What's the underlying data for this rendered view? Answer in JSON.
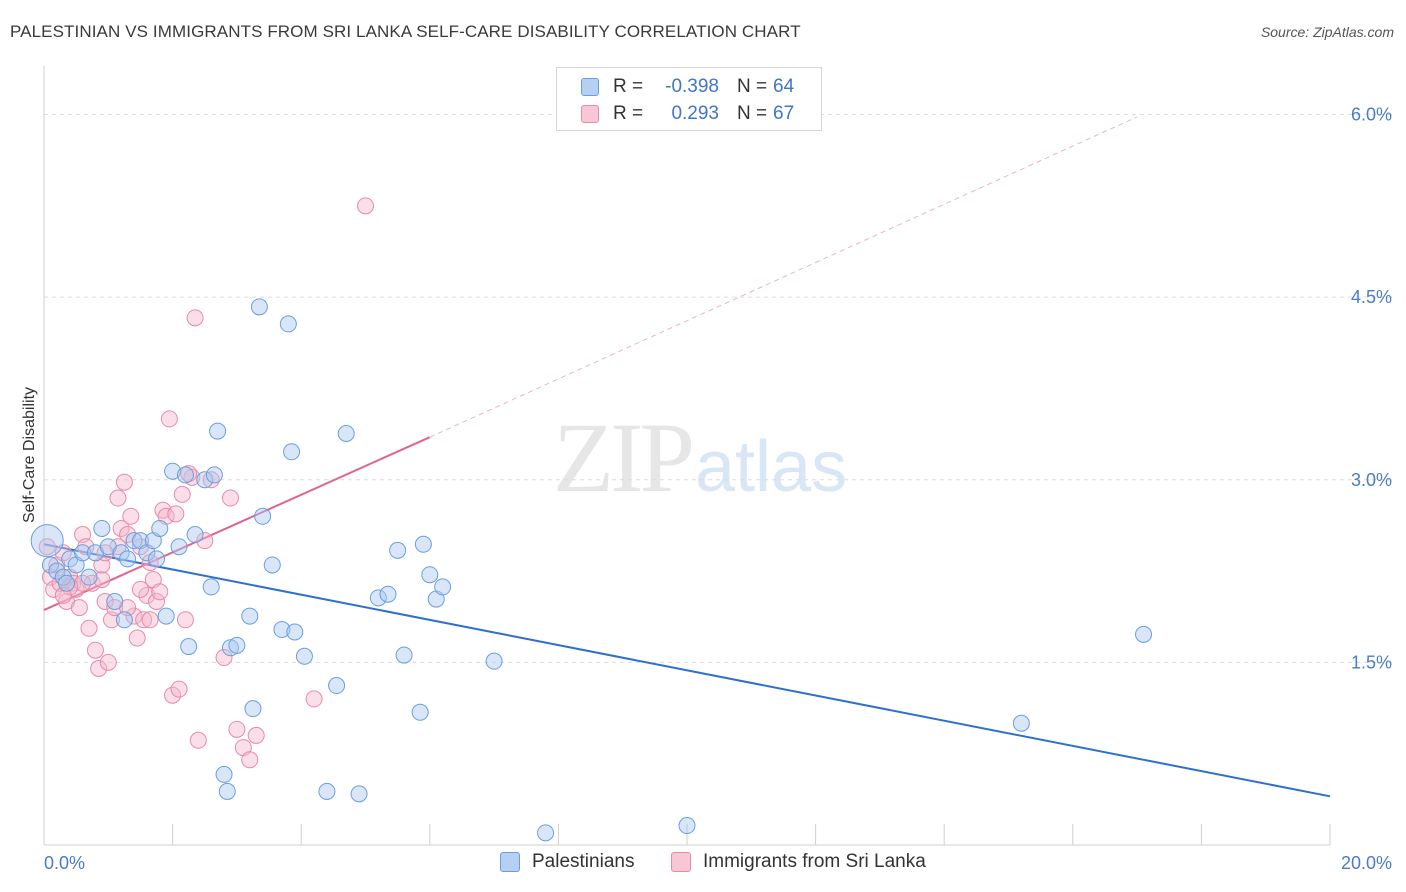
{
  "title": "PALESTINIAN VS IMMIGRANTS FROM SRI LANKA SELF-CARE DISABILITY CORRELATION CHART",
  "source": "Source: ZipAtlas.com",
  "watermark": {
    "zip": "ZIP",
    "atlas": "atlas"
  },
  "legend": {
    "rows": [
      {
        "r_label": "R =",
        "r_value": "-0.398",
        "n_label": "N =",
        "n_value": "64"
      },
      {
        "r_label": "R =",
        "r_value": "0.293",
        "n_label": "N =",
        "n_value": "67"
      }
    ]
  },
  "colors": {
    "blue_fill": "#a9c8f0",
    "blue_stroke": "#6a9ee0",
    "blue_line": "#2f6fcf",
    "pink_fill": "#f5b9cb",
    "pink_stroke": "#e88aa8",
    "pink_line": "#e0648e",
    "grid": "#dcdcdc",
    "tick_label": "#4a7cc9"
  },
  "chart_data": {
    "type": "scatter",
    "title": "PALESTINIAN VS IMMIGRANTS FROM SRI LANKA SELF-CARE DISABILITY CORRELATION CHART",
    "xlabel": "",
    "ylabel": "Self-Care Disability",
    "xlim": [
      0,
      20
    ],
    "ylim": [
      0,
      6.3
    ],
    "x_tick_labels": [
      "0.0%",
      "20.0%"
    ],
    "y_ticks": [
      1.5,
      3.0,
      4.5,
      6.0
    ],
    "y_tick_labels": [
      "1.5%",
      "3.0%",
      "4.5%",
      "6.0%"
    ],
    "grid": true,
    "legend_position": "top-center",
    "series": [
      {
        "name": "Palestinians",
        "color": "blue",
        "points": [
          [
            0.05,
            2.5
          ],
          [
            0.1,
            2.3
          ],
          [
            0.2,
            2.25
          ],
          [
            0.3,
            2.2
          ],
          [
            0.35,
            2.15
          ],
          [
            0.4,
            2.35
          ],
          [
            0.5,
            2.3
          ],
          [
            0.6,
            2.4
          ],
          [
            0.7,
            2.2
          ],
          [
            0.8,
            2.4
          ],
          [
            0.9,
            2.6
          ],
          [
            1.0,
            2.45
          ],
          [
            1.1,
            2.0
          ],
          [
            1.2,
            2.4
          ],
          [
            1.25,
            1.85
          ],
          [
            1.3,
            2.35
          ],
          [
            1.4,
            2.5
          ],
          [
            1.5,
            2.5
          ],
          [
            1.6,
            2.4
          ],
          [
            1.7,
            2.5
          ],
          [
            1.75,
            2.35
          ],
          [
            1.8,
            2.6
          ],
          [
            1.9,
            1.88
          ],
          [
            2.0,
            3.07
          ],
          [
            2.1,
            2.45
          ],
          [
            2.2,
            3.04
          ],
          [
            2.25,
            1.63
          ],
          [
            2.35,
            2.55
          ],
          [
            2.5,
            3.0
          ],
          [
            2.6,
            2.12
          ],
          [
            2.65,
            3.04
          ],
          [
            2.7,
            3.4
          ],
          [
            2.8,
            0.58
          ],
          [
            2.85,
            0.44
          ],
          [
            2.9,
            1.62
          ],
          [
            3.0,
            1.64
          ],
          [
            3.2,
            1.88
          ],
          [
            3.25,
            1.12
          ],
          [
            3.4,
            2.7
          ],
          [
            3.35,
            4.42
          ],
          [
            3.55,
            2.3
          ],
          [
            3.7,
            1.77
          ],
          [
            3.8,
            4.28
          ],
          [
            3.9,
            1.75
          ],
          [
            3.85,
            3.23
          ],
          [
            4.05,
            1.55
          ],
          [
            4.4,
            0.44
          ],
          [
            4.55,
            1.31
          ],
          [
            4.7,
            3.38
          ],
          [
            4.9,
            0.42
          ],
          [
            5.2,
            2.03
          ],
          [
            5.35,
            2.06
          ],
          [
            5.5,
            2.42
          ],
          [
            5.6,
            1.56
          ],
          [
            5.85,
            1.09
          ],
          [
            5.9,
            2.47
          ],
          [
            6.0,
            2.22
          ],
          [
            6.1,
            2.02
          ],
          [
            6.2,
            2.12
          ],
          [
            7.0,
            1.51
          ],
          [
            7.8,
            0.1
          ],
          [
            10.0,
            0.16
          ],
          [
            15.2,
            1.0
          ],
          [
            17.1,
            1.73
          ]
        ]
      },
      {
        "name": "Immigrants from Sri Lanka",
        "color": "pink",
        "points": [
          [
            0.05,
            2.45
          ],
          [
            0.1,
            2.2
          ],
          [
            0.15,
            2.1
          ],
          [
            0.2,
            2.3
          ],
          [
            0.25,
            2.15
          ],
          [
            0.3,
            2.4
          ],
          [
            0.35,
            2.0
          ],
          [
            0.4,
            2.2
          ],
          [
            0.45,
            2.15
          ],
          [
            0.5,
            2.1
          ],
          [
            0.55,
            1.95
          ],
          [
            0.6,
            2.55
          ],
          [
            0.65,
            2.45
          ],
          [
            0.7,
            1.78
          ],
          [
            0.75,
            2.15
          ],
          [
            0.8,
            1.6
          ],
          [
            0.85,
            1.45
          ],
          [
            0.9,
            2.18
          ],
          [
            0.95,
            2.0
          ],
          [
            1.0,
            1.5
          ],
          [
            1.05,
            1.85
          ],
          [
            1.1,
            1.95
          ],
          [
            1.15,
            2.85
          ],
          [
            1.2,
            2.6
          ],
          [
            1.25,
            2.98
          ],
          [
            1.3,
            2.55
          ],
          [
            1.35,
            2.7
          ],
          [
            1.4,
            1.88
          ],
          [
            1.45,
            1.7
          ],
          [
            1.5,
            2.45
          ],
          [
            1.55,
            1.85
          ],
          [
            1.6,
            2.05
          ],
          [
            1.65,
            2.32
          ],
          [
            1.7,
            2.18
          ],
          [
            1.75,
            2.0
          ],
          [
            1.8,
            2.08
          ],
          [
            1.85,
            2.75
          ],
          [
            1.9,
            2.7
          ],
          [
            1.95,
            3.5
          ],
          [
            2.0,
            1.23
          ],
          [
            2.05,
            2.72
          ],
          [
            2.1,
            1.28
          ],
          [
            2.15,
            2.88
          ],
          [
            2.2,
            1.85
          ],
          [
            2.3,
            3.02
          ],
          [
            2.35,
            4.33
          ],
          [
            2.4,
            0.86
          ],
          [
            2.5,
            2.5
          ],
          [
            2.6,
            3.0
          ],
          [
            2.8,
            1.54
          ],
          [
            2.9,
            2.85
          ],
          [
            3.0,
            0.95
          ],
          [
            3.1,
            0.8
          ],
          [
            3.2,
            0.7
          ],
          [
            3.3,
            0.9
          ],
          [
            4.2,
            1.2
          ],
          [
            5.0,
            5.25
          ],
          [
            0.9,
            2.3
          ],
          [
            1.15,
            2.45
          ],
          [
            1.5,
            2.1
          ],
          [
            2.25,
            3.05
          ],
          [
            0.6,
            2.15
          ],
          [
            0.4,
            2.12
          ],
          [
            0.3,
            2.05
          ],
          [
            1.65,
            1.85
          ],
          [
            1.3,
            1.95
          ],
          [
            0.95,
            2.4
          ]
        ]
      }
    ],
    "trend_lines": [
      {
        "series": "Palestinians",
        "x": [
          0.0,
          20.0
        ],
        "y": [
          2.47,
          0.4
        ]
      },
      {
        "series": "Immigrants from Sri Lanka",
        "x": [
          0.0,
          6.0
        ],
        "y": [
          1.93,
          3.35
        ],
        "extension_x": [
          6.0,
          17.0
        ],
        "extension_y": [
          3.35,
          5.98
        ]
      }
    ]
  }
}
